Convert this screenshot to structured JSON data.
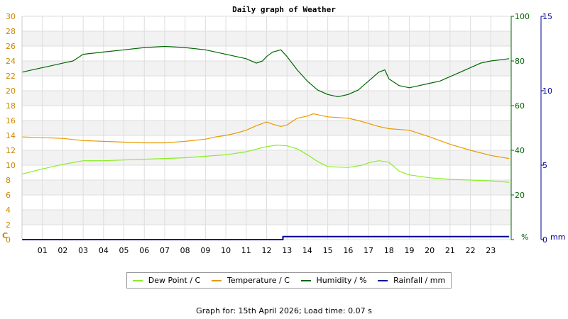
{
  "chart_data": {
    "type": "line",
    "title": "Daily graph of Weather",
    "footer": "Graph for: 15th April 2026; Load time: 0.07 s",
    "x_ticks": [
      "01",
      "02",
      "03",
      "04",
      "05",
      "06",
      "07",
      "08",
      "09",
      "10",
      "11",
      "12",
      "13",
      "14",
      "15",
      "16",
      "17",
      "18",
      "19",
      "20",
      "21",
      "22",
      "23"
    ],
    "xlim": [
      0,
      24
    ],
    "axes": {
      "temperature": {
        "unit_label": "C",
        "ylim": [
          0,
          30
        ],
        "ticks": [
          0,
          2,
          4,
          6,
          8,
          10,
          12,
          14,
          16,
          18,
          20,
          22,
          24,
          26,
          28,
          30
        ],
        "color": "#cc8800"
      },
      "humidity": {
        "unit_label": "%",
        "ylim": [
          0,
          100
        ],
        "ticks": [
          0,
          20,
          40,
          60,
          80,
          100
        ],
        "color": "#006600"
      },
      "rainfall": {
        "unit_label": "mm",
        "ylim": [
          0,
          15
        ],
        "ticks": [
          0,
          5,
          10,
          15
        ],
        "color": "#000099"
      }
    },
    "grid": true,
    "legend_position": "bottom",
    "series": [
      {
        "name": "Dew Point / C",
        "axis": "temperature",
        "color": "#88ee22",
        "x": [
          0,
          1,
          2,
          3,
          4,
          5,
          6,
          7,
          8,
          9,
          10,
          11,
          11.7,
          12,
          12.5,
          13,
          13.5,
          14,
          14.5,
          15,
          16,
          16.7,
          17,
          17.5,
          18,
          18.5,
          19,
          20,
          21,
          22,
          23,
          23.9
        ],
        "y": [
          8.8,
          9.5,
          10.1,
          10.6,
          10.6,
          10.7,
          10.8,
          10.9,
          11.0,
          11.2,
          11.4,
          11.8,
          12.3,
          12.5,
          12.7,
          12.6,
          12.2,
          11.4,
          10.5,
          9.8,
          9.7,
          10.0,
          10.3,
          10.6,
          10.4,
          9.2,
          8.7,
          8.3,
          8.1,
          8.0,
          7.9,
          7.7
        ]
      },
      {
        "name": "Temperature / C",
        "axis": "temperature",
        "color": "#e89a00",
        "x": [
          0,
          1,
          2,
          3,
          4,
          5,
          6,
          7,
          8,
          9,
          9.5,
          10,
          10.5,
          11,
          11.5,
          12,
          12.3,
          12.7,
          13,
          13.5,
          14,
          14.3,
          15,
          16,
          16.5,
          17,
          17.5,
          18,
          19,
          20,
          21,
          22,
          23,
          23.9
        ],
        "y": [
          13.8,
          13.7,
          13.6,
          13.3,
          13.2,
          13.1,
          13.0,
          13.0,
          13.2,
          13.5,
          13.8,
          14.0,
          14.3,
          14.7,
          15.3,
          15.8,
          15.5,
          15.2,
          15.4,
          16.3,
          16.6,
          16.9,
          16.5,
          16.3,
          16.0,
          15.6,
          15.2,
          14.9,
          14.7,
          13.8,
          12.8,
          12.0,
          11.3,
          10.9
        ]
      },
      {
        "name": "Humidity / %",
        "axis": "humidity",
        "color": "#006600",
        "x": [
          0,
          0.5,
          1,
          1.5,
          2,
          2.5,
          3,
          4,
          5,
          6,
          7,
          8,
          9,
          10,
          11,
          11.5,
          11.8,
          12,
          12.3,
          12.7,
          13,
          13.5,
          14,
          14.5,
          15,
          15.5,
          16,
          16.5,
          17,
          17.5,
          17.8,
          18,
          18.5,
          19,
          19.5,
          20,
          20.5,
          21,
          21.5,
          22,
          22.5,
          23,
          23.9
        ],
        "y": [
          75,
          76,
          77,
          78,
          79,
          80,
          83,
          84,
          85,
          86,
          86.5,
          86,
          85,
          83,
          81,
          79,
          80,
          82,
          84,
          85,
          82,
          76,
          71,
          67,
          65,
          64,
          65,
          67,
          71,
          75,
          76,
          72,
          69,
          68,
          69,
          70,
          71,
          73,
          75,
          77,
          79,
          80,
          81
        ]
      },
      {
        "name": "Rainfall / mm",
        "axis": "rainfall",
        "color": "#000099",
        "x": [
          0,
          12.8,
          12.8,
          23.9
        ],
        "y": [
          0,
          0,
          0.2,
          0.2
        ]
      }
    ]
  }
}
